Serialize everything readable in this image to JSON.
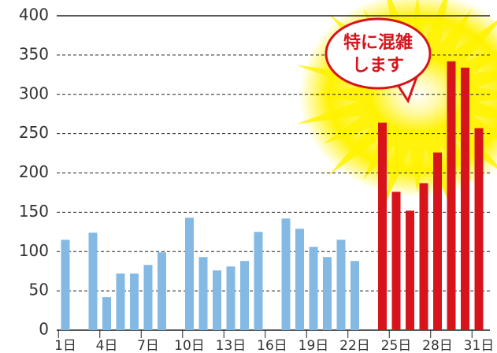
{
  "chart_data": {
    "type": "bar",
    "categories": [
      "1日",
      null,
      null,
      "4日",
      null,
      null,
      "7日",
      null,
      null,
      "10日",
      null,
      null,
      "13日",
      null,
      null,
      "16日",
      null,
      null,
      "19日",
      null,
      null,
      "22日",
      null,
      null,
      "25日",
      null,
      null,
      "28日",
      null,
      null,
      "31日"
    ],
    "values": [
      115,
      null,
      124,
      42,
      72,
      72,
      83,
      99,
      null,
      143,
      93,
      76,
      81,
      88,
      125,
      null,
      142,
      129,
      106,
      93,
      115,
      88,
      null,
      264,
      176,
      152,
      187,
      226,
      342,
      334,
      257
    ],
    "colors": [
      "#84b9e3",
      "#84b9e3",
      "#84b9e3",
      "#84b9e3",
      "#84b9e3",
      "#84b9e3",
      "#84b9e3",
      "#84b9e3",
      "#84b9e3",
      "#84b9e3",
      "#84b9e3",
      "#84b9e3",
      "#84b9e3",
      "#84b9e3",
      "#84b9e3",
      "#84b9e3",
      "#84b9e3",
      "#84b9e3",
      "#84b9e3",
      "#84b9e3",
      "#84b9e3",
      "#84b9e3",
      "#84b9e3",
      "#d7141c",
      "#d7141c",
      "#d7141c",
      "#d7141c",
      "#d7141c",
      "#d7141c",
      "#d7141c",
      "#d7141c"
    ],
    "ylim": [
      0,
      400
    ],
    "yticks": [
      0,
      50,
      100,
      150,
      200,
      250,
      300,
      350,
      400
    ],
    "grid": true,
    "annotation": [
      "特に混雑",
      "します"
    ]
  }
}
